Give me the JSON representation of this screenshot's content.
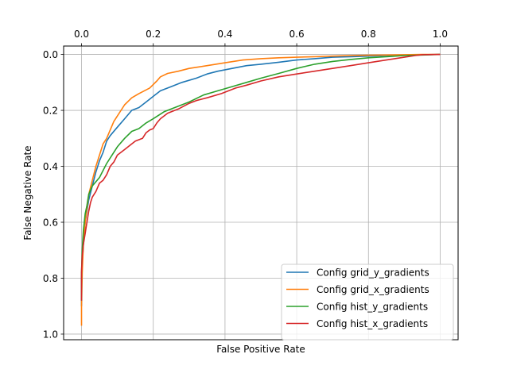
{
  "chart_data": {
    "type": "line",
    "title": "",
    "xlabel": "False Positive Rate",
    "ylabel": "False Negative Rate",
    "xlim": [
      -0.05,
      1.05
    ],
    "ylim": [
      1.02,
      -0.03
    ],
    "x_ticks": [
      0.0,
      0.2,
      0.4,
      0.6,
      0.8,
      1.0
    ],
    "x_tick_labels": [
      "0.0",
      "0.2",
      "0.4",
      "0.6",
      "0.8",
      "1.0"
    ],
    "x_tick_position": "top",
    "y_ticks": [
      0.0,
      0.2,
      0.4,
      0.6,
      0.8,
      1.0
    ],
    "y_tick_labels": [
      "0.0",
      "0.2",
      "0.4",
      "0.6",
      "0.8",
      "1.0"
    ],
    "y_inverted": true,
    "grid": true,
    "legend_position": "lower-right",
    "series": [
      {
        "name": "Config grid_y_gradients",
        "color": "#1f77b4",
        "x": [
          0.0,
          0.0,
          0.002,
          0.005,
          0.01,
          0.015,
          0.02,
          0.03,
          0.04,
          0.05,
          0.06,
          0.07,
          0.08,
          0.1,
          0.12,
          0.14,
          0.16,
          0.18,
          0.2,
          0.22,
          0.25,
          0.28,
          0.32,
          0.35,
          0.38,
          0.42,
          0.46,
          0.5,
          0.55,
          0.6,
          0.65,
          0.7,
          0.75,
          0.8,
          0.85,
          0.9,
          0.95,
          1.0
        ],
        "y": [
          0.9,
          0.8,
          0.75,
          0.68,
          0.6,
          0.56,
          0.52,
          0.47,
          0.42,
          0.38,
          0.35,
          0.31,
          0.29,
          0.26,
          0.23,
          0.2,
          0.19,
          0.17,
          0.15,
          0.13,
          0.115,
          0.1,
          0.085,
          0.07,
          0.06,
          0.05,
          0.04,
          0.035,
          0.028,
          0.02,
          0.015,
          0.01,
          0.008,
          0.006,
          0.004,
          0.002,
          0.001,
          0.0
        ]
      },
      {
        "name": "Config grid_x_gradients",
        "color": "#ff7f0e",
        "x": [
          0.0,
          0.0,
          0.002,
          0.005,
          0.01,
          0.015,
          0.02,
          0.03,
          0.04,
          0.05,
          0.06,
          0.07,
          0.08,
          0.09,
          0.1,
          0.12,
          0.14,
          0.16,
          0.19,
          0.21,
          0.22,
          0.24,
          0.27,
          0.3,
          0.35,
          0.4,
          0.45,
          0.5,
          0.55,
          0.6,
          0.65,
          0.7,
          0.75,
          0.8,
          0.85,
          0.9,
          0.95,
          1.0
        ],
        "y": [
          0.97,
          0.9,
          0.78,
          0.68,
          0.6,
          0.55,
          0.5,
          0.45,
          0.4,
          0.36,
          0.32,
          0.3,
          0.27,
          0.24,
          0.22,
          0.18,
          0.155,
          0.14,
          0.12,
          0.095,
          0.08,
          0.068,
          0.06,
          0.05,
          0.04,
          0.03,
          0.02,
          0.015,
          0.012,
          0.01,
          0.008,
          0.006,
          0.004,
          0.003,
          0.002,
          0.001,
          0.0,
          0.0
        ]
      },
      {
        "name": "Config hist_y_gradients",
        "color": "#2ca02c",
        "x": [
          0.0,
          0.0,
          0.002,
          0.005,
          0.01,
          0.015,
          0.02,
          0.03,
          0.05,
          0.07,
          0.09,
          0.1,
          0.12,
          0.14,
          0.16,
          0.18,
          0.2,
          0.23,
          0.26,
          0.3,
          0.34,
          0.38,
          0.42,
          0.46,
          0.5,
          0.55,
          0.6,
          0.65,
          0.7,
          0.75,
          0.8,
          0.85,
          0.9,
          0.95,
          1.0
        ],
        "y": [
          0.88,
          0.78,
          0.7,
          0.63,
          0.57,
          0.54,
          0.5,
          0.47,
          0.44,
          0.39,
          0.35,
          0.33,
          0.3,
          0.275,
          0.265,
          0.245,
          0.23,
          0.205,
          0.19,
          0.17,
          0.145,
          0.13,
          0.115,
          0.1,
          0.085,
          0.068,
          0.05,
          0.035,
          0.025,
          0.018,
          0.012,
          0.008,
          0.004,
          0.002,
          0.0
        ]
      },
      {
        "name": "Config hist_x_gradients",
        "color": "#d62728",
        "x": [
          0.0,
          0.0,
          0.002,
          0.005,
          0.01,
          0.015,
          0.02,
          0.025,
          0.03,
          0.04,
          0.05,
          0.06,
          0.07,
          0.08,
          0.09,
          0.1,
          0.12,
          0.14,
          0.15,
          0.17,
          0.18,
          0.19,
          0.2,
          0.21,
          0.22,
          0.24,
          0.27,
          0.3,
          0.32,
          0.35,
          0.39,
          0.41,
          0.43,
          0.46,
          0.5,
          0.55,
          0.6,
          0.65,
          0.7,
          0.75,
          0.8,
          0.85,
          0.9,
          0.93,
          0.95,
          1.0
        ],
        "y": [
          0.88,
          0.78,
          0.72,
          0.68,
          0.64,
          0.6,
          0.56,
          0.53,
          0.51,
          0.49,
          0.46,
          0.45,
          0.43,
          0.4,
          0.385,
          0.36,
          0.34,
          0.32,
          0.31,
          0.3,
          0.28,
          0.27,
          0.265,
          0.245,
          0.23,
          0.21,
          0.195,
          0.175,
          0.165,
          0.155,
          0.14,
          0.13,
          0.12,
          0.11,
          0.095,
          0.08,
          0.07,
          0.06,
          0.05,
          0.04,
          0.03,
          0.02,
          0.01,
          0.004,
          0.001,
          0.0
        ]
      }
    ]
  }
}
